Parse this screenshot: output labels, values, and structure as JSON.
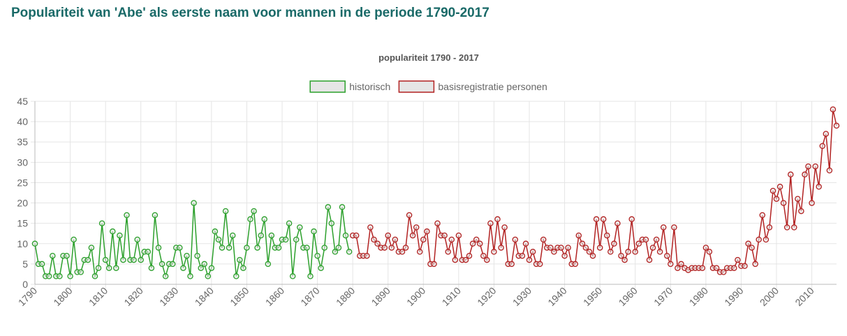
{
  "page": {
    "title": "Populariteit van 'Abe' als eerste naam voor mannen in de periode 1790-2017"
  },
  "chart_data": {
    "type": "line",
    "title": "populariteit 1790 - 2017",
    "xlabel": "",
    "ylabel": "",
    "xlim": [
      1790,
      2017
    ],
    "ylim": [
      0,
      45
    ],
    "y_ticks": [
      0,
      5,
      10,
      15,
      20,
      25,
      30,
      35,
      40,
      45
    ],
    "x_ticks": [
      1790,
      1800,
      1810,
      1820,
      1830,
      1840,
      1850,
      1860,
      1870,
      1880,
      1890,
      1900,
      1910,
      1920,
      1930,
      1940,
      1950,
      1960,
      1970,
      1980,
      1990,
      2000,
      2010
    ],
    "grid": true,
    "legend_position": "top",
    "series": [
      {
        "name": "historisch",
        "color": "#2ca02c",
        "fill": "#e6e6e6",
        "x": [
          1790,
          1791,
          1792,
          1793,
          1794,
          1795,
          1796,
          1797,
          1798,
          1799,
          1800,
          1801,
          1802,
          1803,
          1804,
          1805,
          1806,
          1807,
          1808,
          1809,
          1810,
          1811,
          1812,
          1813,
          1814,
          1815,
          1816,
          1817,
          1818,
          1819,
          1820,
          1821,
          1822,
          1823,
          1824,
          1825,
          1826,
          1827,
          1828,
          1829,
          1830,
          1831,
          1832,
          1833,
          1834,
          1835,
          1836,
          1837,
          1838,
          1839,
          1840,
          1841,
          1842,
          1843,
          1844,
          1845,
          1846,
          1847,
          1848,
          1849,
          1850,
          1851,
          1852,
          1853,
          1854,
          1855,
          1856,
          1857,
          1858,
          1859,
          1860,
          1861,
          1862,
          1863,
          1864,
          1865,
          1866,
          1867,
          1868,
          1869,
          1870,
          1871,
          1872,
          1873,
          1874,
          1875,
          1876,
          1877,
          1878,
          1879
        ],
        "values": [
          10,
          5,
          5,
          2,
          2,
          7,
          2,
          2,
          7,
          7,
          2,
          11,
          3,
          3,
          6,
          6,
          9,
          2,
          4,
          15,
          6,
          4,
          13,
          4,
          12,
          6,
          17,
          6,
          6,
          11,
          6,
          8,
          8,
          4,
          17,
          9,
          5,
          2,
          5,
          5,
          9,
          9,
          4,
          7,
          2,
          20,
          7,
          4,
          5,
          2,
          4,
          13,
          11,
          9,
          18,
          9,
          12,
          2,
          6,
          4,
          9,
          16,
          18,
          9,
          12,
          16,
          5,
          12,
          9,
          9,
          11,
          11,
          15,
          2,
          11,
          14,
          9,
          9,
          2,
          13,
          7,
          4,
          9,
          19,
          15,
          8,
          9,
          19,
          12,
          8
        ]
      },
      {
        "name": "basisregistratie personen",
        "color": "#b22222",
        "fill": "#e6e6e6",
        "x": [
          1880,
          1881,
          1882,
          1883,
          1884,
          1885,
          1886,
          1887,
          1888,
          1889,
          1890,
          1891,
          1892,
          1893,
          1894,
          1895,
          1896,
          1897,
          1898,
          1899,
          1900,
          1901,
          1902,
          1903,
          1904,
          1905,
          1906,
          1907,
          1908,
          1909,
          1910,
          1911,
          1912,
          1913,
          1914,
          1915,
          1916,
          1917,
          1918,
          1919,
          1920,
          1921,
          1922,
          1923,
          1924,
          1925,
          1926,
          1927,
          1928,
          1929,
          1930,
          1931,
          1932,
          1933,
          1934,
          1935,
          1936,
          1937,
          1938,
          1939,
          1940,
          1941,
          1942,
          1943,
          1944,
          1945,
          1946,
          1947,
          1948,
          1949,
          1950,
          1951,
          1952,
          1953,
          1954,
          1955,
          1956,
          1957,
          1958,
          1959,
          1960,
          1961,
          1962,
          1963,
          1964,
          1965,
          1966,
          1967,
          1968,
          1969,
          1970,
          1971,
          1972,
          1973,
          1974,
          1975,
          1976,
          1977,
          1978,
          1979,
          1980,
          1981,
          1982,
          1983,
          1984,
          1985,
          1986,
          1987,
          1988,
          1989,
          1990,
          1991,
          1992,
          1993,
          1994,
          1995,
          1996,
          1997,
          1998,
          1999,
          2000,
          2001,
          2002,
          2003,
          2004,
          2005,
          2006,
          2007,
          2008,
          2009,
          2010,
          2011,
          2012,
          2013,
          2014,
          2015,
          2016,
          2017
        ],
        "values": [
          12,
          12,
          7,
          7,
          7,
          14,
          11,
          10,
          9,
          9,
          12,
          9,
          11,
          8,
          8,
          9,
          17,
          12,
          14,
          8,
          11,
          13,
          5,
          5,
          15,
          12,
          12,
          8,
          11,
          6,
          12,
          6,
          6,
          7,
          10,
          11,
          10,
          7,
          6,
          15,
          8,
          16,
          9,
          14,
          5,
          5,
          11,
          7,
          7,
          10,
          6,
          8,
          5,
          5,
          11,
          9,
          9,
          8,
          9,
          9,
          7,
          9,
          5,
          5,
          12,
          10,
          9,
          8,
          7,
          16,
          9,
          16,
          12,
          8,
          10,
          15,
          7,
          6,
          8,
          16,
          8,
          10,
          11,
          11,
          6,
          9,
          11,
          8,
          14,
          7,
          5,
          14,
          4,
          5,
          4,
          3.5,
          4,
          4,
          4,
          4,
          9,
          8,
          4,
          4,
          3,
          3,
          4,
          4,
          4,
          6,
          4.5,
          4.5,
          10,
          9,
          5,
          11,
          17,
          11,
          14,
          23,
          21,
          24,
          20,
          14,
          27,
          14,
          21,
          18,
          27,
          29,
          20,
          29,
          24,
          34,
          37,
          28,
          43,
          39
        ]
      }
    ]
  }
}
